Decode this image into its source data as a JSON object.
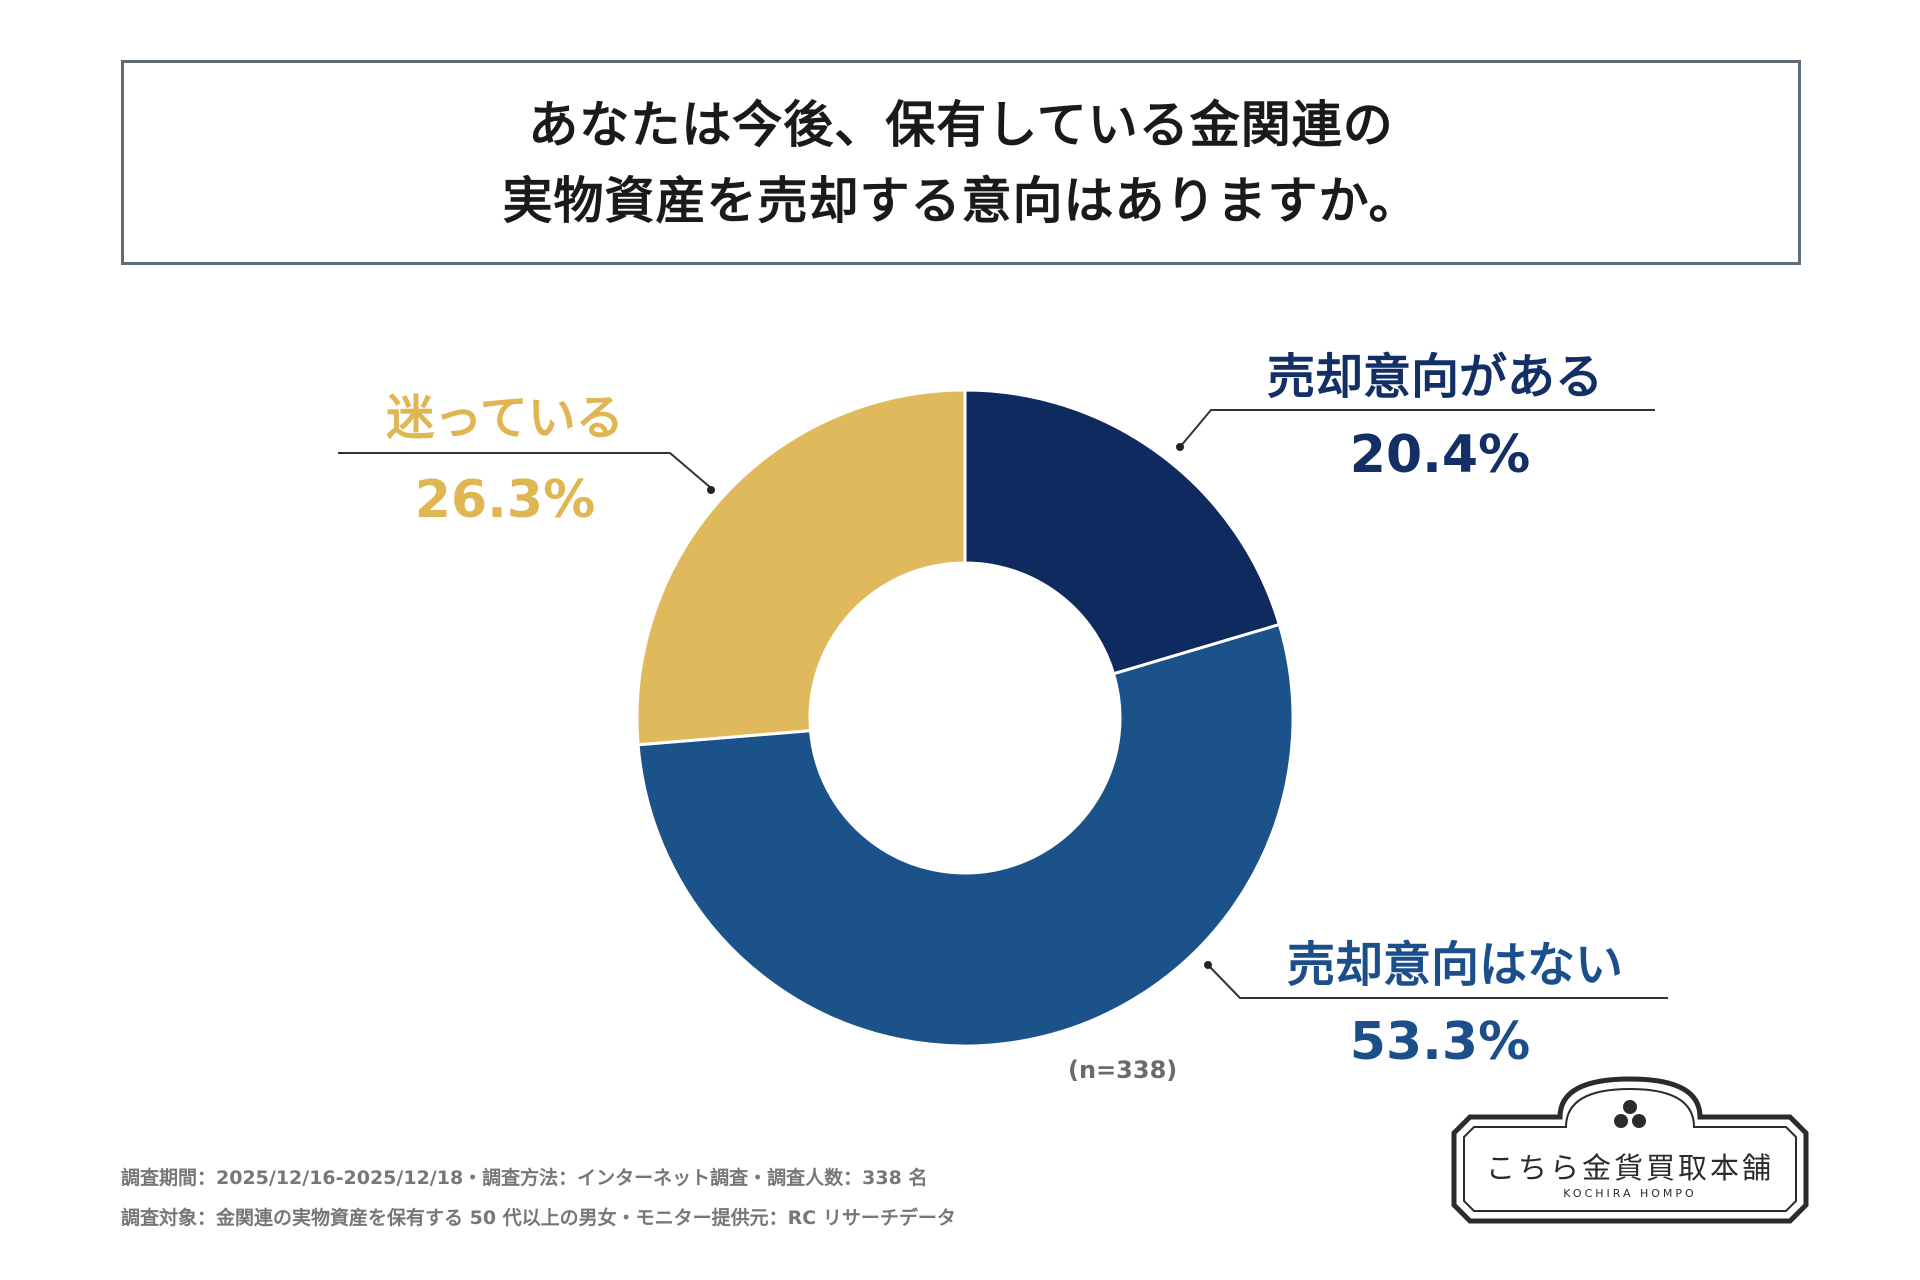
{
  "title": {
    "line1": "あなたは今後、保有している金関連の",
    "line2": "実物資産を売却する意向はありますか。"
  },
  "chart_data": {
    "type": "pie",
    "donut": true,
    "title": "あなたは今後、保有している金関連の実物資産を売却する意向はありますか。",
    "categories": [
      "売却意向がある",
      "売却意向はない",
      "迷っている"
    ],
    "values": [
      20.4,
      53.3,
      26.3
    ],
    "value_labels": [
      "20.4%",
      "53.3%",
      "26.3%"
    ],
    "colors": [
      "#0e2a5e",
      "#1b528a",
      "#e0b95c"
    ],
    "sample": "(n=338)"
  },
  "labels": {
    "gold_cat": "迷っている",
    "gold_pct": "26.3%",
    "navy_cat": "売却意向がある",
    "navy_pct": "20.4%",
    "blue_cat": "売却意向はない",
    "blue_pct": "53.3%"
  },
  "footnote": {
    "line1": "調査期間：2025/12/16-2025/12/18・調査方法：インターネット調査・調査人数：338 名",
    "line2": "調査対象：金関連の実物資産を保有する 50 代以上の男女・モニター提供元：RC リサーチデータ"
  },
  "logo": {
    "name": "こちら金貨買取本舗",
    "sub": "KOCHIRA HOMPO"
  }
}
